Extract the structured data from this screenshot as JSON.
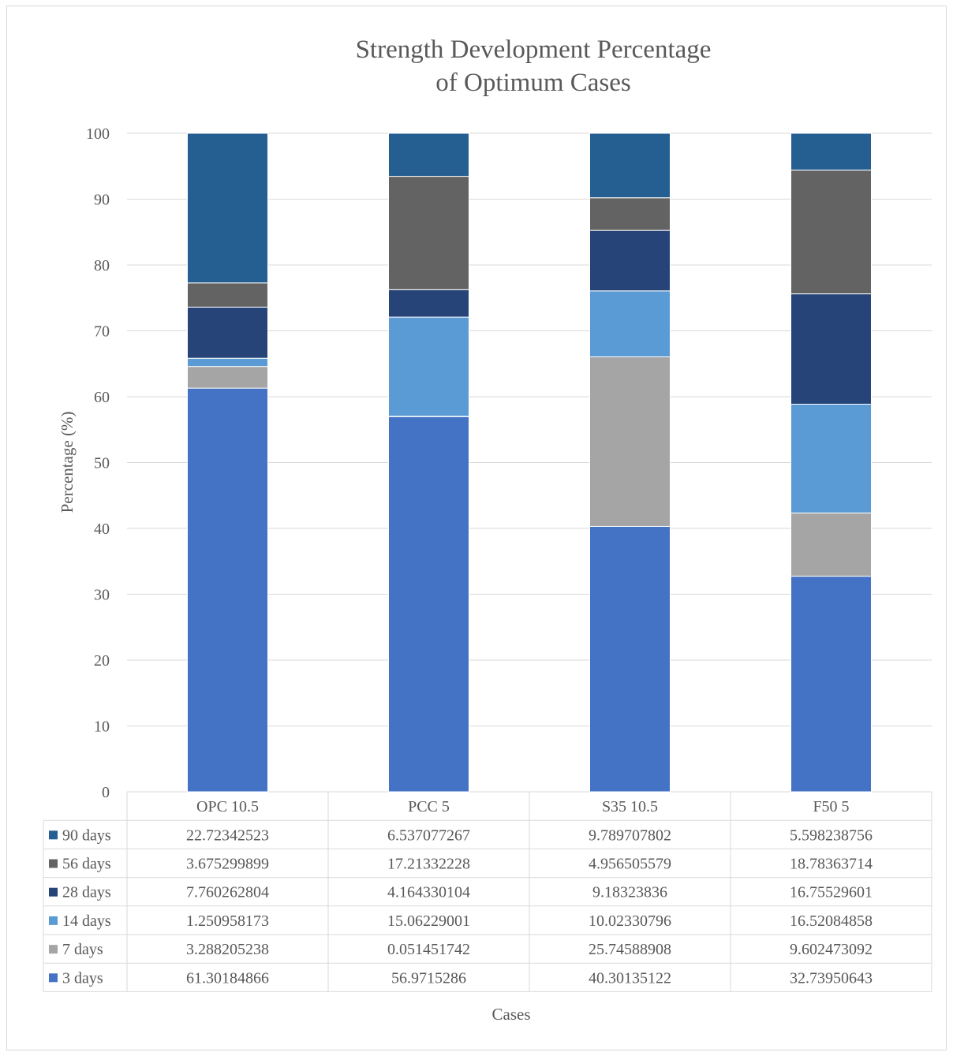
{
  "chart_data": {
    "type": "bar",
    "stacked": true,
    "title_lines": [
      "Strength Development Percentage",
      "of Optimum Cases"
    ],
    "xlabel": "Cases",
    "ylabel": "Percentage (%)",
    "ylim": [
      0,
      100
    ],
    "yticks": [
      0,
      10,
      20,
      30,
      40,
      50,
      60,
      70,
      80,
      90,
      100
    ],
    "grid": true,
    "legend": "data-table",
    "categories": [
      "OPC 10.5",
      "PCC 5",
      "S35 10.5",
      "F50 5"
    ],
    "series": [
      {
        "name": "3 days",
        "color": "#4472c4",
        "values": [
          61.30184866,
          56.9715286,
          40.30135122,
          32.73950643
        ],
        "labels": [
          "61.30184866",
          "56.9715286",
          "40.30135122",
          "32.73950643"
        ]
      },
      {
        "name": "7 days",
        "color": "#a5a5a5",
        "values": [
          3.288205238,
          0.051451742,
          25.74588908,
          9.602473092
        ],
        "labels": [
          "3.288205238",
          "0.051451742",
          "25.74588908",
          "9.602473092"
        ]
      },
      {
        "name": "14 days",
        "color": "#5b9bd5",
        "values": [
          1.250958173,
          15.06229001,
          10.02330796,
          16.52084858
        ],
        "labels": [
          "1.250958173",
          "15.06229001",
          "10.02330796",
          "16.52084858"
        ]
      },
      {
        "name": "28 days",
        "color": "#264478",
        "values": [
          7.760262804,
          4.164330104,
          9.18323836,
          16.75529601
        ],
        "labels": [
          "7.760262804",
          "4.164330104",
          "9.18323836",
          "16.75529601"
        ]
      },
      {
        "name": "56 days",
        "color": "#636363",
        "values": [
          3.675299899,
          17.21332228,
          4.956505579,
          18.78363714
        ],
        "labels": [
          "3.675299899",
          "17.21332228",
          "4.956505579",
          "18.78363714"
        ]
      },
      {
        "name": "90 days",
        "color": "#255e91",
        "values": [
          22.72342523,
          6.537077267,
          9.789707802,
          5.598238756
        ],
        "labels": [
          "22.72342523",
          "6.537077267",
          "9.789707802",
          "5.598238756"
        ]
      }
    ]
  }
}
